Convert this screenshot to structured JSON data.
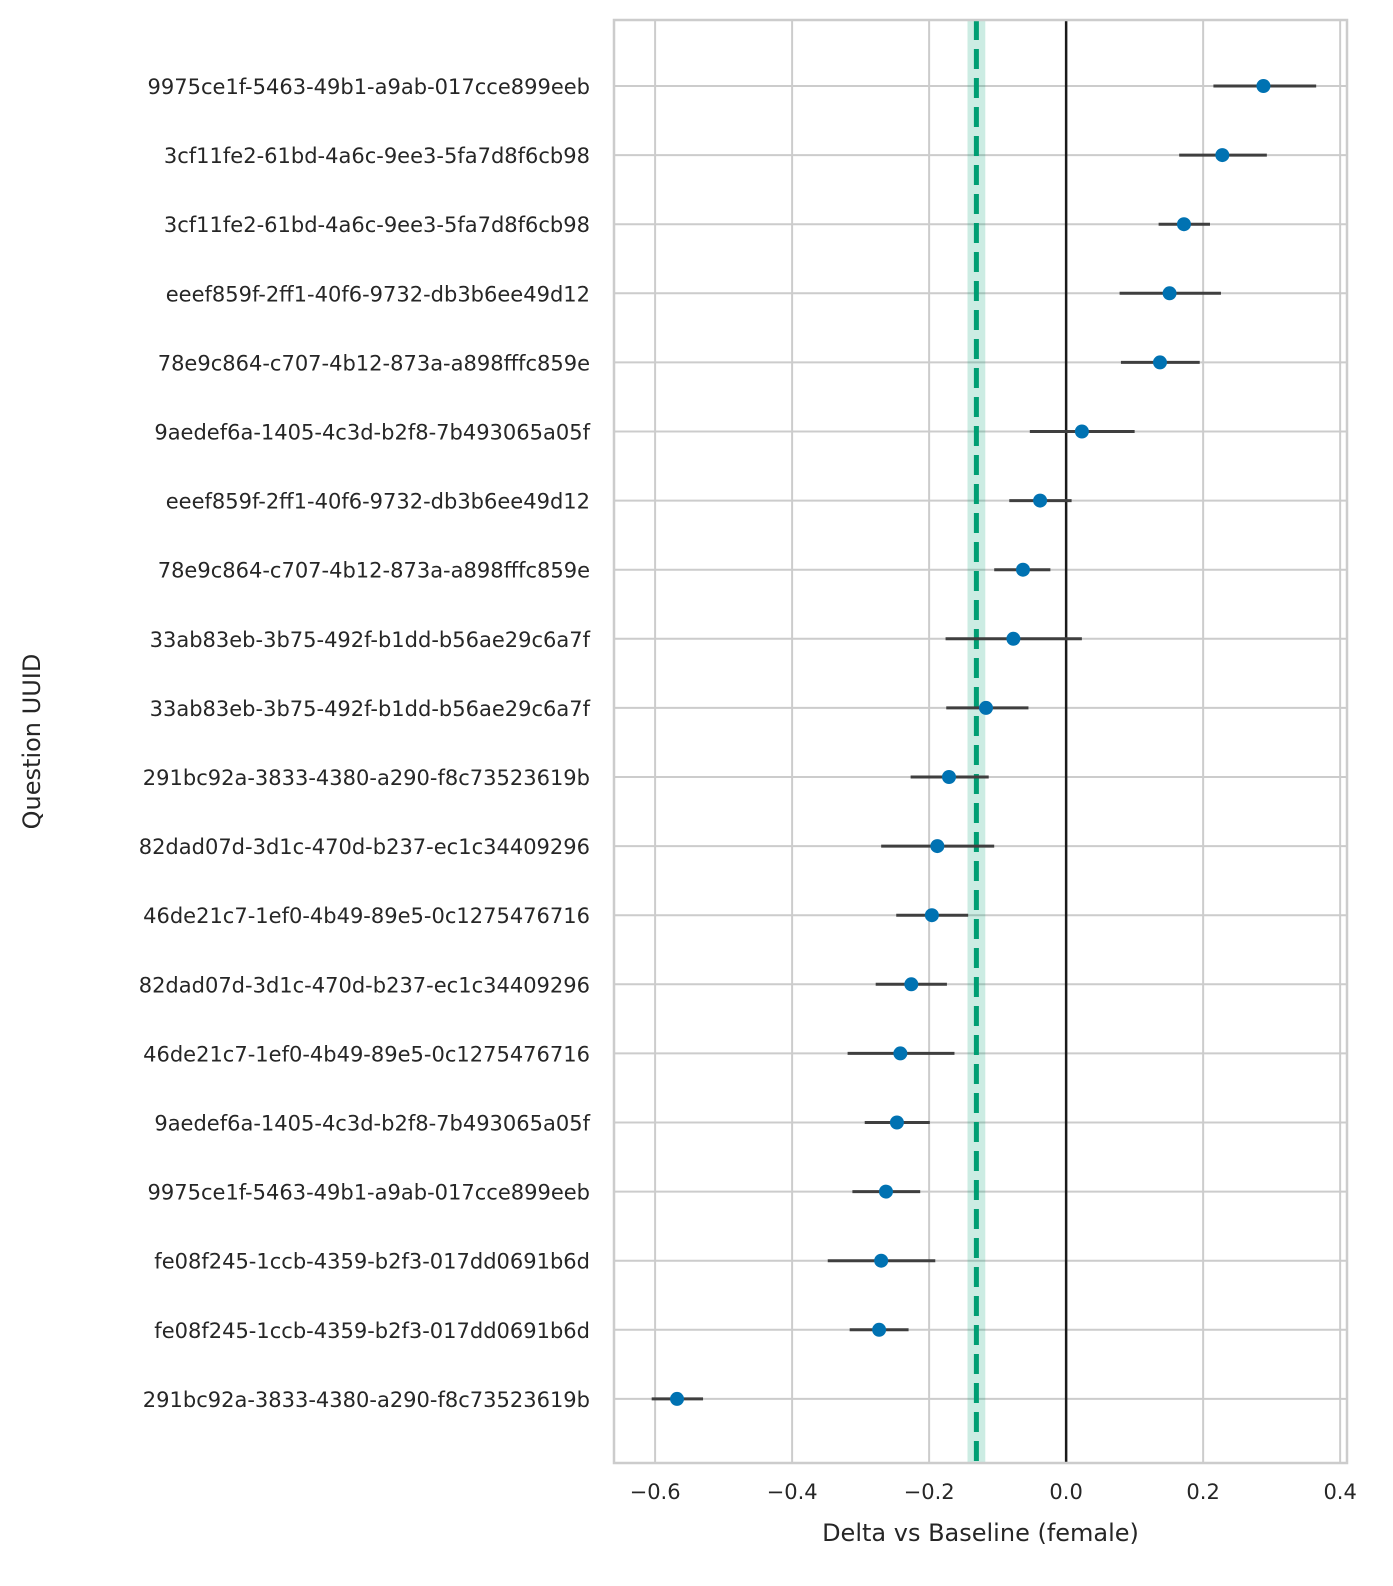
{
  "chart_data": {
    "type": "scatter",
    "xlabel": "Delta vs Baseline (female)",
    "ylabel": "Question UUID",
    "xlim": [
      -0.66,
      0.41
    ],
    "xticks": [
      -0.6,
      -0.4,
      -0.2,
      0.0,
      0.2,
      0.4
    ],
    "xtick_labels": [
      "−0.6",
      "−0.4",
      "−0.2",
      "0.0",
      "0.2",
      "0.4"
    ],
    "grid": true,
    "zero_line": 0.0,
    "reference_line": {
      "value": -0.131,
      "band": [
        -0.144,
        -0.118
      ],
      "color": "#009e73",
      "style": "dashed"
    },
    "point_color": "#0072b2",
    "errorbar_color": "#3f3f3f",
    "points": [
      {
        "label": "9975ce1f-5463-49b1-a9ab-017cce899eeb",
        "value": 0.288,
        "low": 0.215,
        "high": 0.365
      },
      {
        "label": "3cf11fe2-61bd-4a6c-9ee3-5fa7d8f6cb98",
        "value": 0.228,
        "low": 0.165,
        "high": 0.293
      },
      {
        "label": "3cf11fe2-61bd-4a6c-9ee3-5fa7d8f6cb98",
        "value": 0.172,
        "low": 0.135,
        "high": 0.21
      },
      {
        "label": "eeef859f-2ff1-40f6-9732-db3b6ee49d12",
        "value": 0.151,
        "low": 0.078,
        "high": 0.226
      },
      {
        "label": "78e9c864-c707-4b12-873a-a898fffc859e",
        "value": 0.137,
        "low": 0.08,
        "high": 0.195
      },
      {
        "label": "9aedef6a-1405-4c3d-b2f8-7b493065a05f",
        "value": 0.023,
        "low": -0.053,
        "high": 0.1
      },
      {
        "label": "eeef859f-2ff1-40f6-9732-db3b6ee49d12",
        "value": -0.038,
        "low": -0.083,
        "high": 0.008
      },
      {
        "label": "78e9c864-c707-4b12-873a-a898fffc859e",
        "value": -0.063,
        "low": -0.105,
        "high": -0.023
      },
      {
        "label": "33ab83eb-3b75-492f-b1dd-b56ae29c6a7f",
        "value": -0.077,
        "low": -0.176,
        "high": 0.023
      },
      {
        "label": "33ab83eb-3b75-492f-b1dd-b56ae29c6a7f",
        "value": -0.117,
        "low": -0.175,
        "high": -0.055
      },
      {
        "label": "291bc92a-3833-4380-a290-f8c73523619b",
        "value": -0.171,
        "low": -0.227,
        "high": -0.113
      },
      {
        "label": "82dad07d-3d1c-470d-b237-ec1c34409296",
        "value": -0.188,
        "low": -0.27,
        "high": -0.105
      },
      {
        "label": "46de21c7-1ef0-4b49-89e5-0c1275476716",
        "value": -0.196,
        "low": -0.248,
        "high": -0.143
      },
      {
        "label": "82dad07d-3d1c-470d-b237-ec1c34409296",
        "value": -0.226,
        "low": -0.278,
        "high": -0.174
      },
      {
        "label": "46de21c7-1ef0-4b49-89e5-0c1275476716",
        "value": -0.242,
        "low": -0.319,
        "high": -0.163
      },
      {
        "label": "9aedef6a-1405-4c3d-b2f8-7b493065a05f",
        "value": -0.247,
        "low": -0.294,
        "high": -0.199
      },
      {
        "label": "9975ce1f-5463-49b1-a9ab-017cce899eeb",
        "value": -0.263,
        "low": -0.312,
        "high": -0.213
      },
      {
        "label": "fe08f245-1ccb-4359-b2f3-017dd0691b6d",
        "value": -0.27,
        "low": -0.348,
        "high": -0.191
      },
      {
        "label": "fe08f245-1ccb-4359-b2f3-017dd0691b6d",
        "value": -0.273,
        "low": -0.316,
        "high": -0.23
      },
      {
        "label": "291bc92a-3833-4380-a290-f8c73523619b",
        "value": -0.568,
        "low": -0.605,
        "high": -0.53
      }
    ]
  }
}
